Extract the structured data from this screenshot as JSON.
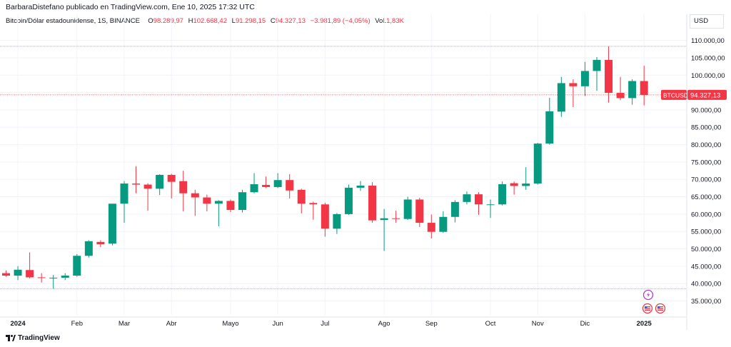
{
  "header": {
    "publisher": "BarbaraDistefano publicado en TradingView.com, Ene 10, 2025 17:32 UTC",
    "symbol": "Bitcoin/Dólar estadounidense, 1S, BINANCE",
    "ohlc": {
      "o_label": "O",
      "o_value": "98.289,97",
      "h_label": "H",
      "h_value": "102.668,42",
      "l_label": "L",
      "l_value": "91.298,15",
      "c_label": "C",
      "c_value": "94.327,13",
      "change": "−3.981,89 (−4,05%)",
      "vol_label": "Vol.",
      "vol_value": "1,83K"
    }
  },
  "currency": "USD",
  "price_tag": {
    "symbol": "BTCUSD",
    "value": "94.327,13",
    "price": 94327.13
  },
  "footer": {
    "brand": "TradingView"
  },
  "colors": {
    "up": "#089981",
    "down": "#f23645",
    "grid": "#f0f3fa"
  },
  "chart_data": {
    "type": "candlestick",
    "interval": "1W",
    "ylim": [
      31000,
      113000
    ],
    "y_ticks": [
      {
        "v": 35000,
        "label": "35.000,00"
      },
      {
        "v": 40000,
        "label": "40.000,00"
      },
      {
        "v": 45000,
        "label": "45.000,00"
      },
      {
        "v": 50000,
        "label": "50.000,00"
      },
      {
        "v": 55000,
        "label": "55.000,00"
      },
      {
        "v": 60000,
        "label": "60.000,00"
      },
      {
        "v": 65000,
        "label": "65.000,00"
      },
      {
        "v": 70000,
        "label": "70.000,00"
      },
      {
        "v": 75000,
        "label": "75.000,00"
      },
      {
        "v": 80000,
        "label": "80.000,00"
      },
      {
        "v": 85000,
        "label": "85.000,00"
      },
      {
        "v": 90000,
        "label": "90.000,00"
      },
      {
        "v": 95000,
        "label": "95.000,00"
      },
      {
        "v": 100000,
        "label": "100.000,00"
      },
      {
        "v": 105000,
        "label": "105.000,00"
      },
      {
        "v": 110000,
        "label": "110.000,00"
      }
    ],
    "x_ticks": [
      {
        "index": 1,
        "label": "2024",
        "year": true
      },
      {
        "index": 6,
        "label": "Feb"
      },
      {
        "index": 10,
        "label": "Mar"
      },
      {
        "index": 14,
        "label": "Abr"
      },
      {
        "index": 19,
        "label": "Mayo"
      },
      {
        "index": 23,
        "label": "Jun"
      },
      {
        "index": 27,
        "label": "Jul"
      },
      {
        "index": 32,
        "label": "Ago"
      },
      {
        "index": 36,
        "label": "Sep"
      },
      {
        "index": 41,
        "label": "Oct"
      },
      {
        "index": 45,
        "label": "Nov"
      },
      {
        "index": 49,
        "label": "Dic"
      },
      {
        "index": 54,
        "label": "2025",
        "year": true
      }
    ],
    "grid": true,
    "candles": [
      {
        "o": 43000,
        "h": 43800,
        "l": 42000,
        "c": 42300
      },
      {
        "o": 42300,
        "h": 45000,
        "l": 41000,
        "c": 44000
      },
      {
        "o": 43900,
        "h": 49000,
        "l": 41500,
        "c": 41800
      },
      {
        "o": 41800,
        "h": 43000,
        "l": 40300,
        "c": 41600
      },
      {
        "o": 41500,
        "h": 42500,
        "l": 38500,
        "c": 41700
      },
      {
        "o": 41700,
        "h": 43000,
        "l": 41000,
        "c": 42300
      },
      {
        "o": 42300,
        "h": 48500,
        "l": 42000,
        "c": 48000
      },
      {
        "o": 48000,
        "h": 52500,
        "l": 47500,
        "c": 52200
      },
      {
        "o": 52000,
        "h": 52500,
        "l": 50500,
        "c": 51300
      },
      {
        "o": 51500,
        "h": 63000,
        "l": 51000,
        "c": 63000
      },
      {
        "o": 63000,
        "h": 69500,
        "l": 57500,
        "c": 68800
      },
      {
        "o": 68800,
        "h": 73800,
        "l": 66000,
        "c": 68500
      },
      {
        "o": 68500,
        "h": 68900,
        "l": 61000,
        "c": 67300
      },
      {
        "o": 67300,
        "h": 71500,
        "l": 65500,
        "c": 71300
      },
      {
        "o": 71300,
        "h": 71600,
        "l": 64500,
        "c": 69300
      },
      {
        "o": 69500,
        "h": 72500,
        "l": 60800,
        "c": 66000
      },
      {
        "o": 66000,
        "h": 67000,
        "l": 59500,
        "c": 64800
      },
      {
        "o": 64800,
        "h": 65600,
        "l": 60800,
        "c": 63000
      },
      {
        "o": 63000,
        "h": 64000,
        "l": 56500,
        "c": 63800
      },
      {
        "o": 63800,
        "h": 64200,
        "l": 60600,
        "c": 61200
      },
      {
        "o": 61200,
        "h": 67000,
        "l": 60500,
        "c": 66300
      },
      {
        "o": 66300,
        "h": 71800,
        "l": 66000,
        "c": 68600
      },
      {
        "o": 68400,
        "h": 70800,
        "l": 67500,
        "c": 67800
      },
      {
        "o": 67800,
        "h": 71800,
        "l": 67500,
        "c": 69800
      },
      {
        "o": 69800,
        "h": 71500,
        "l": 64500,
        "c": 66800
      },
      {
        "o": 67000,
        "h": 67300,
        "l": 60200,
        "c": 63000
      },
      {
        "o": 63200,
        "h": 63600,
        "l": 58400,
        "c": 62800
      },
      {
        "o": 62800,
        "h": 63300,
        "l": 53500,
        "c": 55800
      },
      {
        "o": 55800,
        "h": 60300,
        "l": 54300,
        "c": 60000
      },
      {
        "o": 60000,
        "h": 68500,
        "l": 59800,
        "c": 67600
      },
      {
        "o": 67600,
        "h": 69500,
        "l": 66700,
        "c": 68200
      },
      {
        "o": 68200,
        "h": 69200,
        "l": 57500,
        "c": 58200
      },
      {
        "o": 58300,
        "h": 61500,
        "l": 49400,
        "c": 58800
      },
      {
        "o": 58800,
        "h": 61000,
        "l": 57500,
        "c": 58600
      },
      {
        "o": 58600,
        "h": 65000,
        "l": 58300,
        "c": 64200
      },
      {
        "o": 64200,
        "h": 64700,
        "l": 56300,
        "c": 57500
      },
      {
        "o": 57500,
        "h": 59900,
        "l": 53000,
        "c": 54900
      },
      {
        "o": 54900,
        "h": 60800,
        "l": 54600,
        "c": 59200
      },
      {
        "o": 59200,
        "h": 64000,
        "l": 57600,
        "c": 63500
      },
      {
        "o": 63500,
        "h": 66500,
        "l": 62800,
        "c": 65700
      },
      {
        "o": 65700,
        "h": 66300,
        "l": 59800,
        "c": 62800
      },
      {
        "o": 62600,
        "h": 64200,
        "l": 58900,
        "c": 62800
      },
      {
        "o": 62800,
        "h": 69400,
        "l": 62500,
        "c": 68600
      },
      {
        "o": 68900,
        "h": 69400,
        "l": 65600,
        "c": 68100
      },
      {
        "o": 68100,
        "h": 73500,
        "l": 67000,
        "c": 68800
      },
      {
        "o": 68800,
        "h": 80500,
        "l": 68500,
        "c": 80300
      },
      {
        "o": 80300,
        "h": 93500,
        "l": 80000,
        "c": 89600
      },
      {
        "o": 89500,
        "h": 99500,
        "l": 88000,
        "c": 97700
      },
      {
        "o": 97700,
        "h": 98800,
        "l": 90800,
        "c": 96800
      },
      {
        "o": 96800,
        "h": 103800,
        "l": 94000,
        "c": 101200
      },
      {
        "o": 101200,
        "h": 105200,
        "l": 95500,
        "c": 104400
      },
      {
        "o": 104400,
        "h": 108300,
        "l": 92100,
        "c": 94900
      },
      {
        "o": 94900,
        "h": 99500,
        "l": 92800,
        "c": 93400
      },
      {
        "o": 93400,
        "h": 98800,
        "l": 91500,
        "c": 98300
      },
      {
        "o": 98300,
        "h": 102700,
        "l": 91300,
        "c": 94300
      }
    ]
  }
}
